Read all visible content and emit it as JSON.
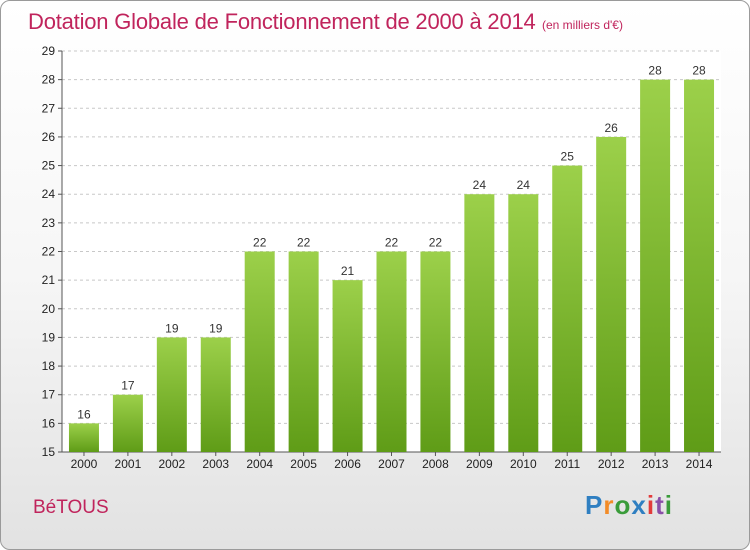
{
  "title": "Dotation Globale de Fonctionnement de 2000 à 2014",
  "unit_note": "(en milliers d'€)",
  "commune": "BéTOUS",
  "logo": {
    "letters": [
      "P",
      "r",
      "o",
      "x",
      "i",
      "t",
      "i"
    ],
    "colors": [
      "#2f7fc1",
      "#f28c28",
      "#3a9c3a",
      "#2f7fc1",
      "#e23b3b",
      "#8a4fa8",
      "#3a9c3a"
    ]
  },
  "colors": {
    "bar_top": "#9cd04a",
    "bar_bottom": "#5f9c17",
    "grid": "#c8c8c8"
  },
  "chart_data": {
    "type": "bar",
    "categories": [
      "2000",
      "2001",
      "2002",
      "2003",
      "2004",
      "2005",
      "2006",
      "2007",
      "2008",
      "2009",
      "2010",
      "2011",
      "2012",
      "2013",
      "2014"
    ],
    "values": [
      16,
      17,
      19,
      19,
      22,
      22,
      21,
      22,
      22,
      24,
      24,
      25,
      26,
      28,
      28
    ],
    "ylim": [
      15,
      29
    ],
    "yticks": [
      15,
      16,
      17,
      18,
      19,
      20,
      21,
      22,
      23,
      24,
      25,
      26,
      27,
      28,
      29
    ],
    "grid": true,
    "data_labels": true,
    "xlabel": "",
    "ylabel": ""
  }
}
